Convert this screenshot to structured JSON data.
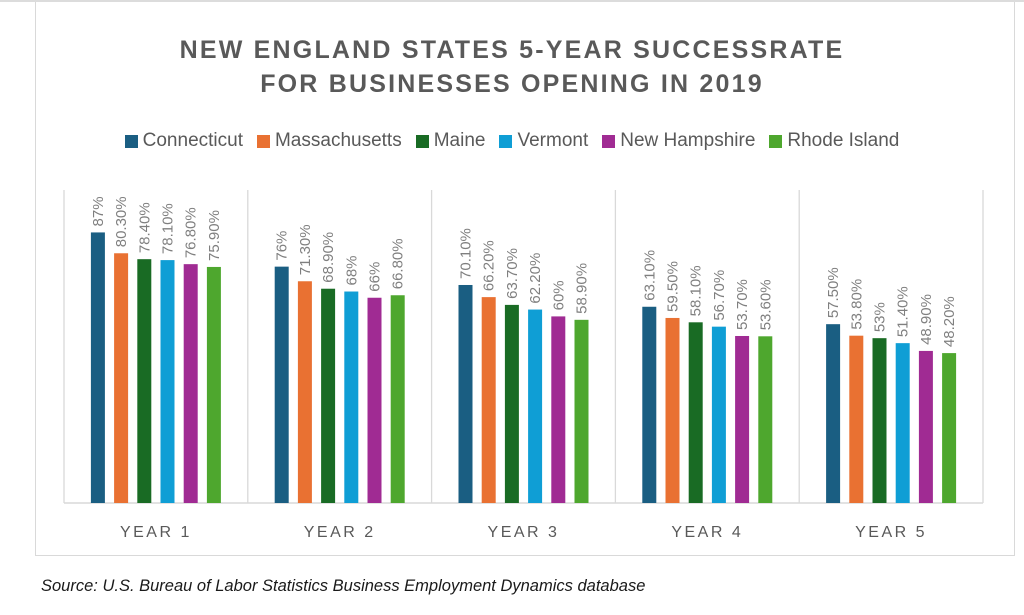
{
  "chart_data": {
    "type": "bar",
    "title": "NEW ENGLAND STATES 5-YEAR SUCCESSRATE FOR BUSINESSES OPENING IN 2019",
    "title_lines": [
      "NEW ENGLAND STATES 5-YEAR SUCCESSRATE",
      "FOR BUSINESSES OPENING IN 2019"
    ],
    "categories": [
      "YEAR 1",
      "YEAR 2",
      "YEAR 3",
      "YEAR 4",
      "YEAR 5"
    ],
    "series": [
      {
        "name": "Connecticut",
        "color": "#1a5e82",
        "values": [
          87,
          76,
          70.1,
          63.1,
          57.5
        ],
        "labels": [
          "87%",
          "76%",
          "70.10%",
          "63.10%",
          "57.50%"
        ]
      },
      {
        "name": "Massachusetts",
        "color": "#e97132",
        "values": [
          80.3,
          71.3,
          66.2,
          59.5,
          53.8
        ],
        "labels": [
          "80.30%",
          "71.30%",
          "66.20%",
          "59.50%",
          "53.80%"
        ]
      },
      {
        "name": "Maine",
        "color": "#196b24",
        "values": [
          78.4,
          68.9,
          63.7,
          58.1,
          53
        ],
        "labels": [
          "78.40%",
          "68.90%",
          "63.70%",
          "58.10%",
          "53%"
        ]
      },
      {
        "name": "Vermont",
        "color": "#0f9ed5",
        "values": [
          78.1,
          68,
          62.2,
          56.7,
          51.4
        ],
        "labels": [
          "78.10%",
          "68%",
          "62.20%",
          "56.70%",
          "51.40%"
        ]
      },
      {
        "name": "New Hampshire",
        "color": "#a02b93",
        "values": [
          76.8,
          66,
          60,
          53.7,
          48.9
        ],
        "labels": [
          "76.80%",
          "66%",
          "60%",
          "53.70%",
          "48.90%"
        ]
      },
      {
        "name": "Rhode Island",
        "color": "#4ea72e",
        "values": [
          75.9,
          66.8,
          58.9,
          53.6,
          48.2
        ],
        "labels": [
          "75.90%",
          "66.80%",
          "58.90%",
          "53.60%",
          "48.20%"
        ]
      }
    ],
    "xlabel": "",
    "ylabel": "",
    "ylim": [
      0,
      100
    ],
    "y_axis_visible": false,
    "grid": "vertical category separators",
    "legend_position": "top",
    "data_labels": "rotated vertical above bars"
  },
  "source": "Source: U.S. Bureau of Labor Statistics Business Employment Dynamics database"
}
